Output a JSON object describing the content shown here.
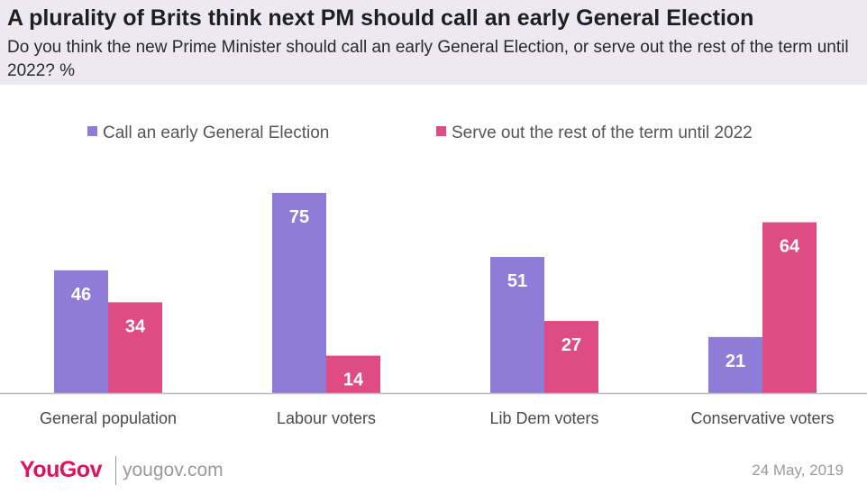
{
  "chart_data": {
    "type": "bar",
    "title": "A plurality of Brits think next PM should call an early General Election",
    "subtitle": "Do you think the new Prime Minister should call an early General Election, or serve out the rest of the term until 2022? %",
    "categories": [
      "General population",
      "Labour voters",
      "Lib Dem voters",
      "Conservative voters"
    ],
    "series": [
      {
        "name": "Call an early General Election",
        "color": "#8e7cd8",
        "values": [
          46,
          75,
          51,
          21
        ]
      },
      {
        "name": "Serve out the rest of the term until 2022",
        "color": "#de4b85",
        "values": [
          34,
          14,
          27,
          64
        ]
      }
    ],
    "xlabel": "",
    "ylabel": "",
    "ylim": [
      0,
      100
    ],
    "grid": false,
    "legend": "top"
  },
  "footer": {
    "logo": "YouGov",
    "url": "yougov.com",
    "date": "24 May, 2019"
  }
}
